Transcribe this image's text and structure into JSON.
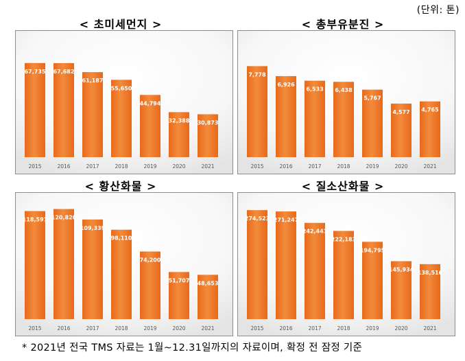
{
  "unit_note": "(단위: 톤)",
  "footnote": "* 2021년 전국 TMS 자료는 1월~12.31일까지의 자료이며, 확정 전 잠정 기준",
  "colors": {
    "bar_top": "#f28b3c",
    "bar_bottom": "#e8691a",
    "label": "#ffffff",
    "tick": "#555555"
  },
  "chart_data": [
    {
      "type": "bar",
      "title": "< 초미세먼지 >",
      "categories": [
        "2015",
        "2016",
        "2017",
        "2018",
        "2019",
        "2020",
        "2021"
      ],
      "values": [
        67735,
        67682,
        61187,
        55650,
        44794,
        32388,
        30873
      ],
      "value_labels": [
        "67,735",
        "67,682",
        "61,187",
        "55,650",
        "44,794",
        "32,388",
        "30,873"
      ],
      "ylim": [
        0,
        80000
      ],
      "xlabel": "",
      "ylabel": "",
      "grid": false
    },
    {
      "type": "bar",
      "title": "< 총부유분진 >",
      "categories": [
        "2015",
        "2016",
        "2017",
        "2018",
        "2019",
        "2020",
        "2021"
      ],
      "values": [
        7778,
        6926,
        6533,
        6438,
        5767,
        4577,
        4765
      ],
      "value_labels": [
        "7,778",
        "6,926",
        "6,533",
        "6,438",
        "5,767",
        "4,577",
        "4,765"
      ],
      "ylim": [
        0,
        9500
      ],
      "xlabel": "",
      "ylabel": "",
      "grid": false
    },
    {
      "type": "bar",
      "title": "< 황산화물 >",
      "categories": [
        "2015",
        "2016",
        "2017",
        "2018",
        "2019",
        "2020",
        "2021"
      ],
      "values": [
        118591,
        120820,
        109339,
        98110,
        74200,
        51707,
        48653
      ],
      "value_labels": [
        "118,591",
        "120,820",
        "109,339",
        "98,110",
        "74,200",
        "51,707",
        "48,653"
      ],
      "ylim": [
        0,
        122000
      ],
      "xlabel": "",
      "ylabel": "",
      "grid": false
    },
    {
      "type": "bar",
      "title": "< 질소산화물 >",
      "categories": [
        "2015",
        "2016",
        "2017",
        "2018",
        "2019",
        "2020",
        "2021"
      ],
      "values": [
        274523,
        271247,
        242441,
        222183,
        194795,
        145934,
        138516
      ],
      "value_labels": [
        "274,523",
        "271,247",
        "242,441",
        "222,183",
        "194,795",
        "145,934",
        "138,516"
      ],
      "ylim": [
        0,
        280000
      ],
      "xlabel": "",
      "ylabel": "",
      "grid": false
    }
  ]
}
